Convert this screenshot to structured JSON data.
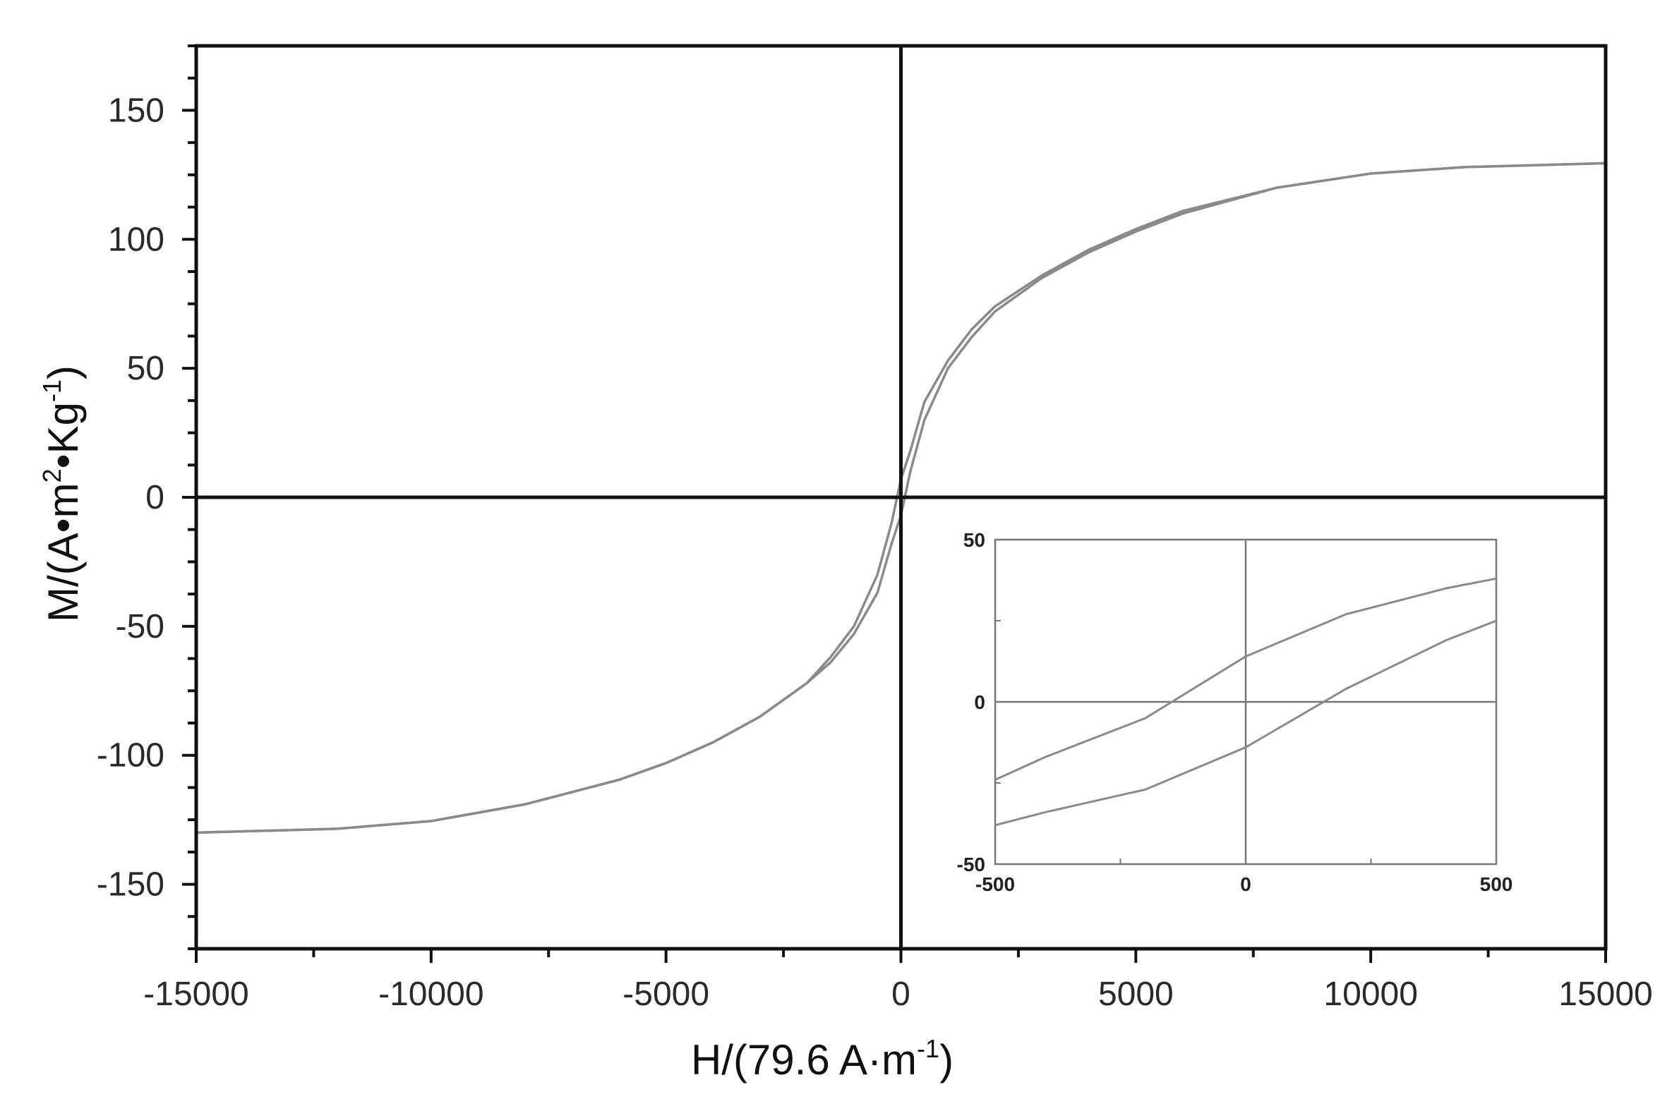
{
  "chart_data": {
    "type": "line",
    "xlabel": "H/(79.6 A·m",
    "xlabel_sup": "-1",
    "xlabel_end": ")",
    "ylabel_parts": [
      "M/(A•m",
      "2",
      "•Kg",
      "-1",
      ")"
    ],
    "xlim": [
      -15000,
      15000
    ],
    "ylim": [
      -175,
      175
    ],
    "xticks": [
      -15000,
      -10000,
      -5000,
      0,
      5000,
      10000,
      15000
    ],
    "yticks": [
      -150,
      -100,
      -50,
      0,
      50,
      100,
      150
    ],
    "grid": false,
    "line_color": "#8a8a8a",
    "series": [
      {
        "values": [
          [
            -15000,
            -130
          ],
          [
            -12000,
            -128.5
          ],
          [
            -10000,
            -125.5
          ],
          [
            -8000,
            -119
          ],
          [
            -6000,
            -109.5
          ],
          [
            -5000,
            -103
          ],
          [
            -4000,
            -95
          ],
          [
            -3000,
            -85
          ],
          [
            -2000,
            -72
          ],
          [
            -1500,
            -62
          ],
          [
            -1000,
            -50
          ],
          [
            -500,
            -30
          ],
          [
            -200,
            -10
          ],
          [
            0,
            7
          ],
          [
            200,
            18
          ],
          [
            500,
            37
          ],
          [
            1000,
            53
          ],
          [
            1500,
            65
          ],
          [
            2000,
            74
          ],
          [
            3000,
            86
          ],
          [
            4000,
            96
          ],
          [
            5000,
            104
          ],
          [
            6000,
            111
          ],
          [
            8000,
            120
          ],
          [
            10000,
            125.5
          ],
          [
            12000,
            128
          ],
          [
            15000,
            129.5
          ]
        ]
      },
      {
        "values": [
          [
            -15000,
            -130
          ],
          [
            -12000,
            -128.5
          ],
          [
            -10000,
            -125.5
          ],
          [
            -8000,
            -119
          ],
          [
            -6000,
            -109.5
          ],
          [
            -5000,
            -103
          ],
          [
            -4000,
            -95
          ],
          [
            -3000,
            -85
          ],
          [
            -2000,
            -72
          ],
          [
            -1500,
            -64
          ],
          [
            -1000,
            -53
          ],
          [
            -500,
            -37
          ],
          [
            -200,
            -18
          ],
          [
            0,
            -7
          ],
          [
            200,
            10
          ],
          [
            500,
            30
          ],
          [
            1000,
            50
          ],
          [
            1500,
            62
          ],
          [
            2000,
            72
          ],
          [
            3000,
            85
          ],
          [
            4000,
            95
          ],
          [
            5000,
            103
          ],
          [
            6000,
            110
          ],
          [
            8000,
            120
          ],
          [
            10000,
            125.5
          ],
          [
            12000,
            128
          ],
          [
            15000,
            129.5
          ]
        ]
      }
    ],
    "inset": {
      "type": "line",
      "xlim": [
        -500,
        500
      ],
      "ylim": [
        -50,
        50
      ],
      "xticks": [
        -500,
        0,
        500
      ],
      "yticks": [
        -50,
        0,
        50
      ],
      "grid": false,
      "series": [
        {
          "values": [
            [
              -500,
              -24
            ],
            [
              -400,
              -17
            ],
            [
              -200,
              -5
            ],
            [
              0,
              14
            ],
            [
              200,
              27
            ],
            [
              400,
              35
            ],
            [
              500,
              38
            ]
          ]
        },
        {
          "values": [
            [
              -500,
              -38
            ],
            [
              -400,
              -34
            ],
            [
              -200,
              -27
            ],
            [
              0,
              -14
            ],
            [
              200,
              4
            ],
            [
              400,
              19
            ],
            [
              500,
              25
            ]
          ]
        }
      ]
    }
  }
}
